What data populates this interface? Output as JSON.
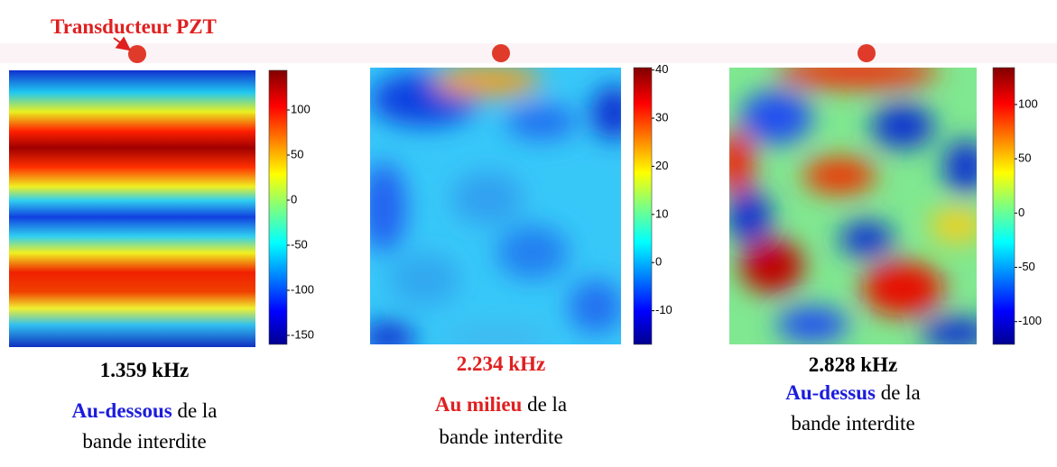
{
  "annotation": "Transducteur PZT",
  "panels": [
    {
      "colorbar": {
        "lim": [
          -160,
          144
        ],
        "ticks": [
          100,
          50,
          0,
          -50,
          -100,
          -150
        ]
      },
      "frequency": "1.359 kHz",
      "position": "Au-dessous",
      "rest": "de la",
      "line2": "bande interdite"
    },
    {
      "colorbar": {
        "lim": [
          -17,
          40.5
        ],
        "ticks": [
          40,
          30,
          20,
          10,
          0,
          -10
        ]
      },
      "frequency": "2.234 kHz",
      "position": "Au milieu",
      "rest": "de la",
      "line2": "bande interdite"
    },
    {
      "colorbar": {
        "lim": [
          -121,
          134
        ],
        "ticks": [
          100,
          50,
          0,
          -50,
          -100
        ]
      },
      "frequency": "2.828 kHz",
      "position": "Au-dessus",
      "rest": "de la",
      "line2": "bande interdite"
    }
  ]
}
